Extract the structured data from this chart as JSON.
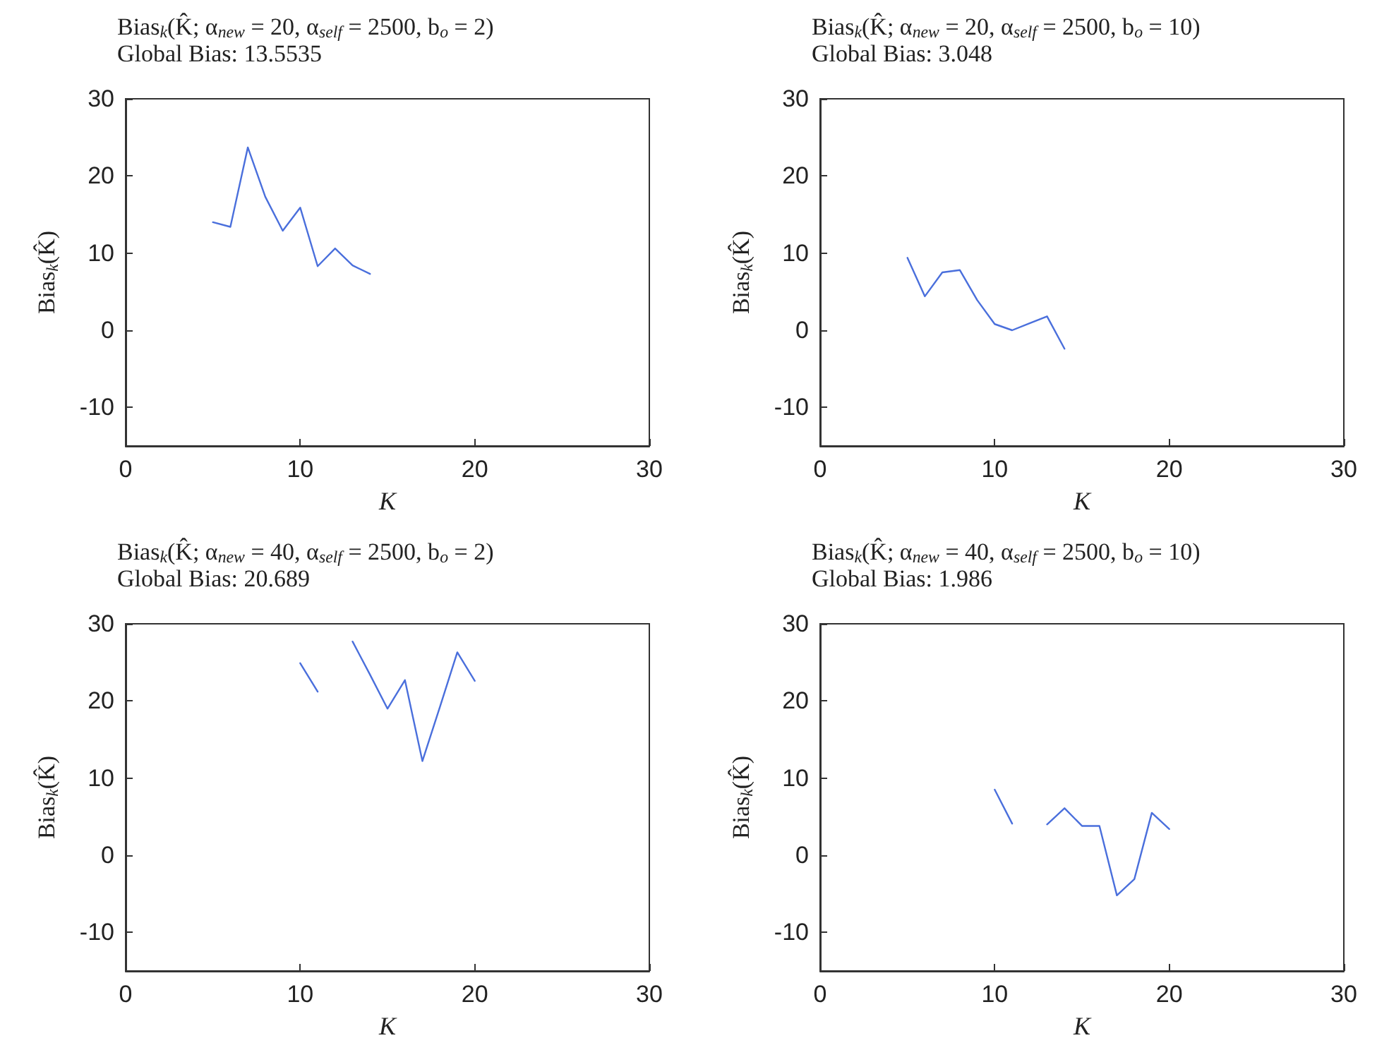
{
  "chart_data": [
    {
      "type": "line",
      "title": "Bias$_{k}$(K̂; α$_{new}$ = 20, α$_{self}$ = 2500, b$_{o}$ = 2)",
      "subtitle": "Global Bias: 13.5535",
      "xlabel": "K",
      "ylabel": "Bias$_{k}$(K̂)",
      "x": [
        5,
        6,
        7,
        8,
        9,
        10,
        11,
        12,
        13,
        14
      ],
      "series": [
        {
          "color": "#4a6fdc",
          "values": [
            14.0,
            13.4,
            23.7,
            17.3,
            12.9,
            15.9,
            8.3,
            10.6,
            8.4,
            7.3
          ]
        }
      ],
      "xlim": [
        0,
        30
      ],
      "xticks": [
        0,
        10,
        20,
        30
      ],
      "ylim": [
        -15,
        30
      ],
      "yticks": [
        -10,
        0,
        10,
        20,
        30
      ],
      "grid": false
    },
    {
      "type": "line",
      "title": "Bias$_{k}$(K̂; α$_{new}$ = 20, α$_{self}$ = 2500, b$_{o}$ = 10)",
      "subtitle": "Global Bias: 3.048",
      "xlabel": "K",
      "ylabel": "Bias$_{k}$(K̂)",
      "x": [
        5,
        6,
        7,
        8,
        9,
        10,
        11,
        12,
        13,
        14
      ],
      "series": [
        {
          "color": "#4a6fdc",
          "values": [
            9.4,
            4.4,
            7.5,
            7.8,
            3.9,
            0.8,
            0.0,
            0.9,
            1.8,
            -2.4
          ]
        }
      ],
      "xlim": [
        0,
        30
      ],
      "xticks": [
        0,
        10,
        20,
        30
      ],
      "ylim": [
        -15,
        30
      ],
      "yticks": [
        -10,
        0,
        10,
        20,
        30
      ],
      "grid": false
    },
    {
      "type": "line",
      "title": "Bias$_{k}$(K̂; α$_{new}$ = 40, α$_{self}$ = 2500, b$_{o}$ = 2)",
      "subtitle": "Global Bias: 20.689",
      "xlabel": "K",
      "ylabel": "Bias$_{k}$(K̂)",
      "x": [
        10,
        11,
        12,
        13,
        14,
        15,
        16,
        17,
        18,
        19,
        20
      ],
      "series": [
        {
          "color": "#4a6fdc",
          "values": [
            24.9,
            21.2,
            null,
            27.7,
            23.4,
            19.0,
            22.7,
            12.2,
            19.2,
            26.3,
            22.6
          ]
        }
      ],
      "xlim": [
        0,
        30
      ],
      "xticks": [
        0,
        10,
        20,
        30
      ],
      "ylim": [
        -15,
        30
      ],
      "yticks": [
        -10,
        0,
        10,
        20,
        30
      ],
      "grid": false
    },
    {
      "type": "line",
      "title": "Bias$_{k}$(K̂; α$_{new}$ = 40, α$_{self}$ = 2500, b$_{o}$ = 10)",
      "subtitle": "Global Bias: 1.986",
      "xlabel": "K",
      "ylabel": "Bias$_{k}$(K̂)",
      "x": [
        10,
        11,
        12,
        13,
        14,
        15,
        16,
        17,
        18,
        19,
        20
      ],
      "series": [
        {
          "color": "#4a6fdc",
          "values": [
            8.5,
            4.1,
            null,
            4.0,
            6.1,
            3.8,
            3.8,
            -5.2,
            -3.1,
            5.5,
            3.4
          ]
        }
      ],
      "xlim": [
        0,
        30
      ],
      "xticks": [
        0,
        10,
        20,
        30
      ],
      "ylim": [
        -15,
        30
      ],
      "yticks": [
        -10,
        0,
        10,
        20,
        30
      ],
      "grid": false
    }
  ]
}
